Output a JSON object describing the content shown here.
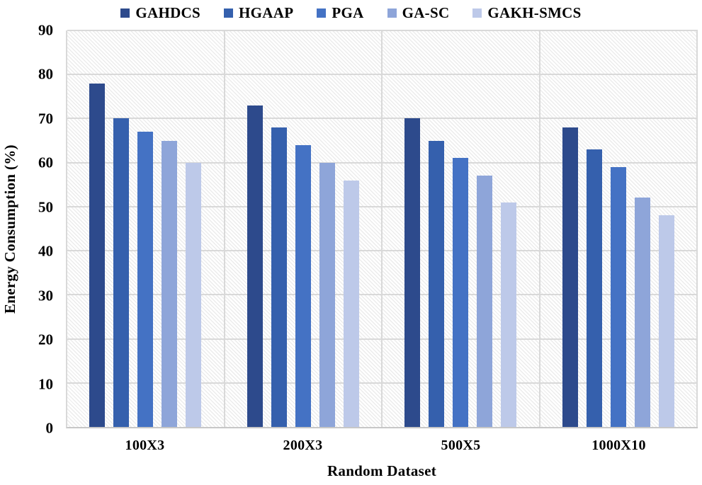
{
  "chart_data": {
    "type": "bar",
    "title": "",
    "xlabel": "Random Dataset",
    "ylabel": "Energy Consumption (%)",
    "categories": [
      "100X3",
      "200X3",
      "500X5",
      "1000X10"
    ],
    "series": [
      {
        "name": "GAHDCS",
        "color": "#2D4A8C",
        "values": [
          78,
          73,
          70,
          68
        ]
      },
      {
        "name": "HGAAP",
        "color": "#3560AD",
        "values": [
          70,
          68,
          65,
          63
        ]
      },
      {
        "name": "PGA",
        "color": "#4472C4",
        "values": [
          67,
          64,
          61,
          59
        ]
      },
      {
        "name": "GA-SC",
        "color": "#8EA5D9",
        "values": [
          65,
          60,
          57,
          52
        ]
      },
      {
        "name": "GAKH-SMCS",
        "color": "#BDC9E9",
        "values": [
          60,
          56,
          51,
          48
        ]
      }
    ],
    "ylim": [
      0,
      90
    ],
    "yticks": [
      0,
      10,
      20,
      30,
      40,
      50,
      60,
      70,
      80,
      90
    ],
    "grid": "horizontal gridlines every 10, vertical lines at category boundaries",
    "legend_position": "top",
    "plot_background": "white with light-gray diagonal hatch",
    "gridline_color": "#D9D9D9"
  }
}
